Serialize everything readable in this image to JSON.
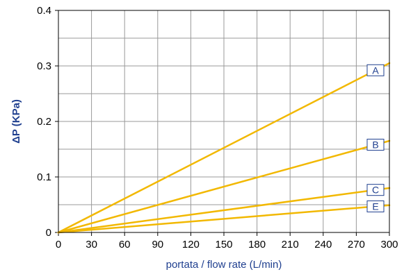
{
  "chart_data": {
    "type": "line",
    "xlabel": "portata / flow rate (L/min)",
    "ylabel": "ΔP (KPa)",
    "xlim": [
      0,
      300
    ],
    "ylim": [
      0,
      0.4
    ],
    "x_ticks": [
      0,
      30,
      60,
      90,
      120,
      150,
      180,
      210,
      240,
      270,
      300
    ],
    "x_tick_labels": [
      "0",
      "30",
      "60",
      "90",
      "120",
      "150",
      "180",
      "210",
      "240",
      "270",
      "300"
    ],
    "y_ticks": [
      0,
      0.1,
      0.2,
      0.3,
      0.4
    ],
    "y_tick_labels": [
      "0",
      "0.1",
      "0.2",
      "0.3",
      "0.4"
    ],
    "x_grid_step": 30,
    "y_grid_step": 0.05,
    "grid": true,
    "line_color": "#f2b800",
    "grid_color": "#999999",
    "label_color": "#1f3f8f",
    "series": [
      {
        "name": "A",
        "x": [
          0,
          300
        ],
        "y": [
          0,
          0.305
        ]
      },
      {
        "name": "B",
        "x": [
          0,
          300
        ],
        "y": [
          0,
          0.165
        ]
      },
      {
        "name": "C",
        "x": [
          0,
          300
        ],
        "y": [
          0,
          0.08
        ]
      },
      {
        "name": "E",
        "x": [
          0,
          300
        ],
        "y": [
          0,
          0.049
        ]
      }
    ]
  }
}
